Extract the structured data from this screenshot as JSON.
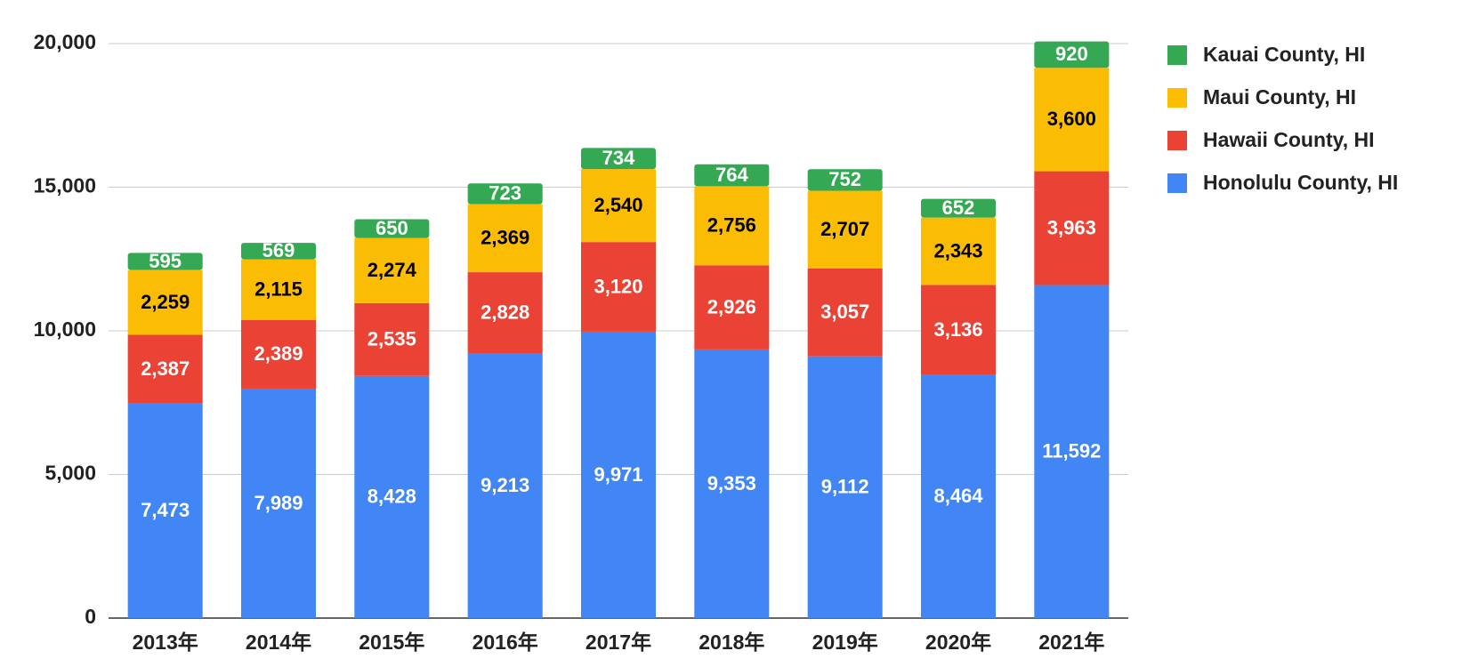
{
  "chart_data": {
    "type": "stacked_bar",
    "categories": [
      "2013年",
      "2014年",
      "2015年",
      "2016年",
      "2017年",
      "2018年",
      "2019年",
      "2020年",
      "2021年"
    ],
    "series": [
      {
        "name": "Honolulu County, HI",
        "color": "#4285f4",
        "label_color": "#ffffff",
        "values": [
          7473,
          7989,
          8428,
          9213,
          9971,
          9353,
          9112,
          8464,
          11592
        ],
        "value_labels": [
          "7,473",
          "7,989",
          "8,428",
          "9,213",
          "9,971",
          "9,353",
          "9,112",
          "8,464",
          "11,592"
        ]
      },
      {
        "name": "Hawaii County, HI",
        "color": "#ea4335",
        "label_color": "#ffffff",
        "values": [
          2387,
          2389,
          2535,
          2828,
          3120,
          2926,
          3057,
          3136,
          3963
        ],
        "value_labels": [
          "2,387",
          "2,389",
          "2,535",
          "2,828",
          "3,120",
          "2,926",
          "3,057",
          "3,136",
          "3,963"
        ]
      },
      {
        "name": "Maui County, HI",
        "color": "#fbbc04",
        "label_color": "#000000",
        "values": [
          2259,
          2115,
          2274,
          2369,
          2540,
          2756,
          2707,
          2343,
          3600
        ],
        "value_labels": [
          "2,259",
          "2,115",
          "2,274",
          "2,369",
          "2,540",
          "2,756",
          "2,707",
          "2,343",
          "3,600"
        ]
      },
      {
        "name": "Kauai County, HI",
        "color": "#34a853",
        "label_color": "#ffffff",
        "values": [
          595,
          569,
          650,
          723,
          734,
          764,
          752,
          652,
          920
        ]
      }
    ],
    "ylim": [
      0,
      20000
    ],
    "yticks": [
      0,
      {
        "value": 5000,
        "label": "5,000"
      },
      {
        "value": 10000,
        "label": "10,000"
      },
      {
        "value": 15000,
        "label": "15,000"
      },
      {
        "value": 20000,
        "label": "20,000"
      }
    ],
    "grid": true,
    "legend": "right"
  }
}
